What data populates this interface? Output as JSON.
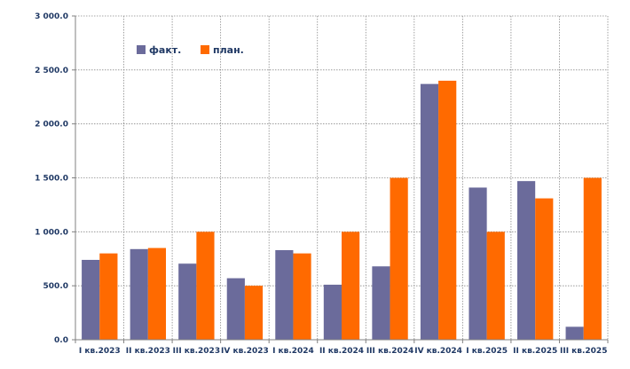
{
  "chart_data": {
    "type": "bar",
    "categories": [
      "I кв.2023",
      "II кв.2023",
      "III кв.2023",
      "IV кв.2023",
      "I кв.2024",
      "II кв.2024",
      "III кв.2024",
      "IV кв.2024",
      "I кв.2025",
      "II кв.2025",
      "III кв.2025"
    ],
    "series": [
      {
        "name": "факт.",
        "color": "#6b6b9b",
        "values": [
          740,
          840,
          705,
          570,
          830,
          510,
          680,
          2370,
          1410,
          1470,
          120
        ]
      },
      {
        "name": "план.",
        "color": "#ff6a00",
        "values": [
          800,
          850,
          1000,
          500,
          800,
          1000,
          1500,
          2400,
          1000,
          1310,
          1500
        ]
      }
    ],
    "ylim": [
      0,
      3000
    ],
    "yticks": [
      0,
      500,
      1000,
      1500,
      2000,
      2500,
      3000
    ],
    "ytick_labels": [
      "0.0",
      "500.0",
      "1 000.0",
      "1 500.0",
      "2 000.0",
      "2 500.0",
      "3 000.0"
    ],
    "grid": true,
    "legend_position": "top-left"
  }
}
